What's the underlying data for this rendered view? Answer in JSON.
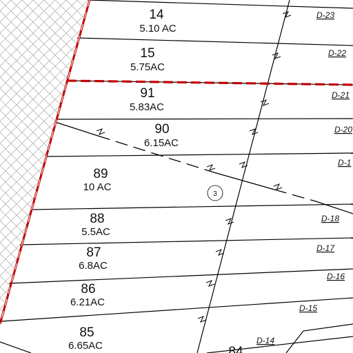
{
  "colors": {
    "boundary": "#c00000",
    "line": "#000000",
    "hatch": "#b5b5b5"
  },
  "lots": [
    {
      "id": "14",
      "number": "14",
      "area": "5.10 AC"
    },
    {
      "id": "15",
      "number": "15",
      "area": "5.75AC"
    },
    {
      "id": "91",
      "number": "91",
      "area": "5.83AC"
    },
    {
      "id": "90",
      "number": "90",
      "area": "6.15AC"
    },
    {
      "id": "89",
      "number": "89",
      "area": "10 AC"
    },
    {
      "id": "88",
      "number": "88",
      "area": "5.5AC"
    },
    {
      "id": "87",
      "number": "87",
      "area": "6.8AC"
    },
    {
      "id": "86",
      "number": "86",
      "area": "6.21AC"
    },
    {
      "id": "85",
      "number": "85",
      "area": "6.65AC"
    },
    {
      "id": "84",
      "number": "84",
      "area": ""
    }
  ],
  "d_labels": [
    "D-23",
    "D-22",
    "D-21",
    "D-20",
    "D-1",
    "D-18",
    "D-17",
    "D-16",
    "D-15",
    "D-14"
  ],
  "callout": "3"
}
